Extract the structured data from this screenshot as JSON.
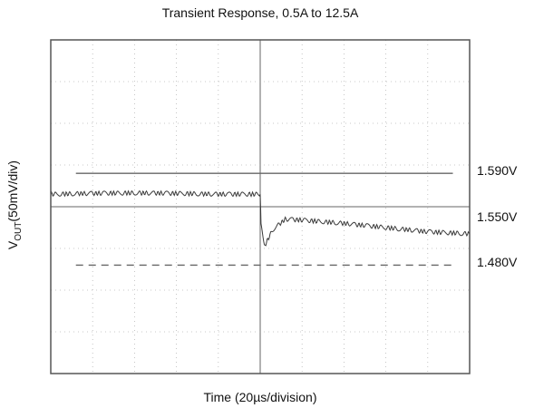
{
  "chart_data": {
    "type": "line",
    "title": "Transient Response, 0.5A to 12.5A",
    "xlabel": "Time (20µs/division)",
    "ylabel_main": "V",
    "ylabel_sub": "OUT",
    "ylabel_rest": "(50mV/div)",
    "x_divisions": 10,
    "y_divisions": 8,
    "xlim_div": [
      0,
      10
    ],
    "ylim_div": [
      0,
      8
    ],
    "grid": true,
    "reference_lines": [
      {
        "label": "1.590V",
        "y_div": 4.8,
        "style": "solid"
      },
      {
        "label": "1.550V",
        "y_div": 4.0,
        "style": "none"
      },
      {
        "label": "1.480V",
        "y_div": 2.6,
        "style": "dashed"
      }
    ],
    "series": [
      {
        "x": [
          0,
          1,
          2,
          3,
          4,
          5,
          5.02,
          5.1,
          5.3,
          5.6,
          6,
          7,
          8,
          9,
          10
        ],
        "y": [
          4.3,
          4.32,
          4.33,
          4.32,
          4.3,
          4.3,
          3.6,
          3.05,
          3.45,
          3.7,
          3.68,
          3.6,
          3.5,
          3.4,
          3.35
        ],
        "noise_amplitude": 0.05
      }
    ]
  }
}
